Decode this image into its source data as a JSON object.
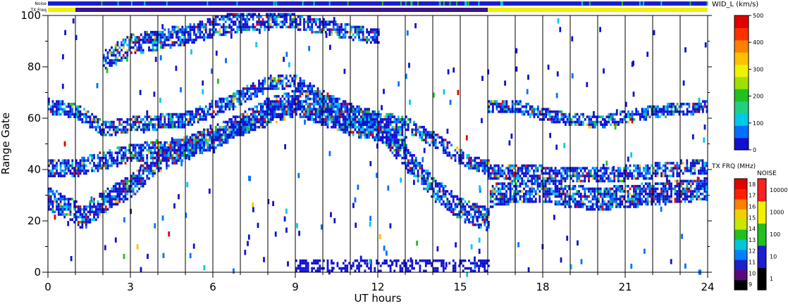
{
  "status_bars": {
    "noise_label": "Noise",
    "txfreq_label": "TX Freq",
    "noise_colors": [
      "#1c1cd0",
      "#00d0d0",
      "#20c020"
    ],
    "txfreq_segments": [
      {
        "from": 0,
        "to": 1,
        "color": "#f0f000"
      },
      {
        "from": 1,
        "to": 16,
        "color": "#3c1488"
      },
      {
        "from": 16,
        "to": 24,
        "color": "#f0f000"
      }
    ]
  },
  "chart_data": {
    "type": "heatmap",
    "xlabel": "UT hours",
    "ylabel": "Range Gate",
    "xlim": [
      0,
      24
    ],
    "ylim": [
      0,
      100
    ],
    "x_ticks": [
      0,
      3,
      6,
      9,
      12,
      15,
      18,
      21,
      24
    ],
    "y_ticks": [
      0,
      20,
      40,
      60,
      80,
      100
    ],
    "scan_boundaries_hours": [
      1,
      2,
      3,
      4,
      5,
      6,
      7,
      8,
      9,
      10,
      11,
      12,
      13,
      14,
      15,
      16,
      17,
      18,
      19,
      20,
      21,
      22,
      23
    ],
    "echo_bands": [
      {
        "x": [
          0,
          1,
          1.2,
          2,
          3,
          4,
          5,
          6,
          7,
          8,
          9,
          10,
          11,
          12,
          13,
          14,
          15,
          16,
          16.01,
          17,
          18,
          19,
          20,
          21,
          22,
          23,
          24
        ],
        "y": [
          28,
          23,
          20,
          27,
          33,
          43,
          48,
          52,
          57,
          63,
          66,
          64,
          59,
          56,
          44,
          32,
          24,
          20,
          29,
          31,
          31,
          29,
          28,
          29,
          30,
          31,
          32
        ],
        "width": 8
      },
      {
        "x": [
          0,
          1,
          2,
          3,
          4,
          5,
          6,
          7,
          8,
          9,
          10,
          11,
          12,
          13
        ],
        "y": [
          40,
          40,
          43,
          46,
          47,
          48,
          51,
          56,
          60,
          64,
          60,
          56,
          54,
          50
        ],
        "width": 6
      },
      {
        "x": [
          0,
          1,
          2,
          3,
          4,
          5,
          6,
          7,
          8,
          9,
          10,
          11,
          12,
          13,
          14,
          15,
          16
        ],
        "y": [
          64,
          62,
          55,
          57,
          58,
          59,
          63,
          68,
          73,
          73,
          67,
          62,
          59,
          57,
          51,
          44,
          40
        ],
        "width": 5
      },
      {
        "x": [
          16,
          17,
          18,
          19,
          20,
          21,
          22,
          23,
          24
        ],
        "y": [
          38,
          39,
          38,
          37,
          37,
          38,
          39,
          40,
          41
        ],
        "width": 5
      },
      {
        "x": [
          16.01,
          17,
          18,
          19,
          20,
          21,
          22,
          23,
          24
        ],
        "y": [
          64,
          64,
          61,
          59,
          58,
          60,
          62,
          63,
          64
        ],
        "width": 4
      },
      {
        "x": [
          2,
          3,
          4,
          5,
          6,
          7,
          8
        ],
        "y": [
          82,
          88,
          90,
          92,
          95,
          97,
          98
        ],
        "width": 7
      },
      {
        "x": [
          8,
          9,
          10,
          11,
          12
        ],
        "y": [
          98,
          97,
          95,
          93,
          91
        ],
        "width": 5
      }
    ],
    "ground_scatter_band": {
      "x_range": [
        9,
        16
      ],
      "y_range": [
        0,
        4
      ]
    },
    "velocity_colorbar": {
      "label": "WID_L (km/s)",
      "range": [
        0,
        500
      ],
      "ticks": [
        0,
        100,
        200,
        300,
        400,
        500
      ],
      "colors": [
        "#1010d0",
        "#0070ff",
        "#00c8e8",
        "#20d080",
        "#20c020",
        "#a0e000",
        "#f0f000",
        "#ffc000",
        "#ff8000",
        "#ff3000",
        "#e00000"
      ]
    },
    "txfreq_colorbar": {
      "label": "TX FRQ (MHz)",
      "ticks": [
        "9",
        "10",
        "11",
        "12",
        "13",
        "14",
        "15",
        "16",
        "17",
        "18"
      ],
      "colors": [
        "#000000",
        "#5a0a78",
        "#2020c8",
        "#0080ff",
        "#00c8d8",
        "#20c020",
        "#c8e800",
        "#f0d000",
        "#ff8000",
        "#ff2000",
        "#e00000"
      ]
    },
    "noise_colorbar": {
      "label": "NOISE",
      "ticks": [
        "1",
        "10",
        "100",
        "1000",
        "10000"
      ],
      "colors": [
        "#000000",
        "#1c1cd0",
        "#20c020",
        "#f0f000",
        "#ff2020"
      ]
    }
  }
}
